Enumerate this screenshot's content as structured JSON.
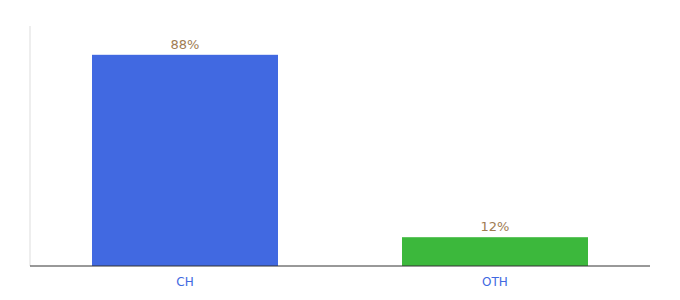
{
  "chart_data": {
    "type": "bar",
    "categories": [
      "CH",
      "OTH"
    ],
    "values": [
      88,
      12
    ],
    "value_labels": [
      "88%",
      "12%"
    ],
    "colors": [
      "#4169e1",
      "#3cb83c"
    ],
    "ylim": [
      0,
      100
    ],
    "data_labels": true,
    "tick_labels": "x",
    "grid": false
  }
}
